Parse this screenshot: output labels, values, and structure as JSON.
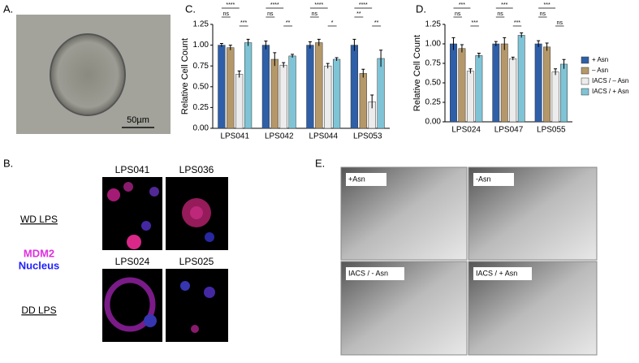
{
  "panels": {
    "a": "A.",
    "b": "B.",
    "c": "C.",
    "d": "D.",
    "e": "E."
  },
  "panel_a": {
    "scale": "50µm"
  },
  "panel_b": {
    "titles": [
      "LPS041",
      "LPS036",
      "LPS024",
      "LPS025"
    ],
    "row_labels": [
      "WD LPS",
      "DD LPS"
    ],
    "stain_labels": [
      "MDM2",
      "Nucleus"
    ]
  },
  "panel_e": {
    "labels": [
      "+Asn",
      "-Asn",
      "IACS / - Asn",
      "IACS / + Asn"
    ]
  },
  "chart_data": [
    {
      "type": "bar",
      "ylabel": "Relative Cell Count",
      "categories": [
        "LPS041",
        "LPS042",
        "LPS044",
        "LPS053"
      ],
      "ylim": [
        0,
        1.25
      ],
      "yticks": [
        {
          "value": 0,
          "label": "0.00"
        },
        {
          "value": 0.25,
          "label": "0.25"
        },
        {
          "value": 0.5,
          "label": "0.50"
        },
        {
          "value": 0.75,
          "label": "0.75"
        },
        {
          "value": 1,
          "label": "1.00"
        },
        {
          "value": 1.25,
          "label": "1.25"
        }
      ],
      "series": [
        {
          "color": "#2e5fa8",
          "values": [
            1.0,
            1.0,
            1.0,
            1.0
          ],
          "errors": [
            0.02,
            0.05,
            0.04,
            0.07
          ]
        },
        {
          "color": "#b5986a",
          "values": [
            0.97,
            0.83,
            1.03,
            0.66
          ],
          "errors": [
            0.03,
            0.08,
            0.04,
            0.05
          ]
        },
        {
          "color": "#ececec",
          "values": [
            0.65,
            0.76,
            0.75,
            0.32
          ],
          "errors": [
            0.04,
            0.03,
            0.03,
            0.08
          ]
        },
        {
          "color": "#7fc4d6",
          "values": [
            1.03,
            0.87,
            0.83,
            0.84
          ],
          "errors": [
            0.04,
            0.02,
            0.02,
            0.1
          ]
        }
      ],
      "annotations": [
        [
          "****",
          "ns",
          "***"
        ],
        [
          "****",
          "ns",
          "**"
        ],
        [
          "****",
          "ns",
          "*"
        ],
        [
          "****",
          "**",
          "**"
        ]
      ]
    },
    {
      "type": "bar",
      "ylabel": "Relative Cell Count",
      "categories": [
        "LPS024",
        "LPS047",
        "LPS055"
      ],
      "ylim": [
        0,
        1.25
      ],
      "yticks": [
        {
          "value": 0,
          "label": "0.00"
        },
        {
          "value": 0.25,
          "label": "0.25"
        },
        {
          "value": 0.5,
          "label": "0.50"
        },
        {
          "value": 0.75,
          "label": "0.75"
        },
        {
          "value": 1,
          "label": "1.00"
        },
        {
          "value": 1.25,
          "label": "1.25"
        }
      ],
      "series": [
        {
          "name": "+ Asn",
          "color": "#2e5fa8",
          "values": [
            1.0,
            1.0,
            1.0
          ],
          "errors": [
            0.08,
            0.03,
            0.04
          ]
        },
        {
          "name": "– Asn",
          "color": "#b5986a",
          "values": [
            0.94,
            1.0,
            0.96
          ],
          "errors": [
            0.05,
            0.08,
            0.05
          ]
        },
        {
          "name": "IACS  / – Asn",
          "color": "#ececec",
          "values": [
            0.65,
            0.81,
            0.64
          ],
          "errors": [
            0.03,
            0.02,
            0.04
          ]
        },
        {
          "name": "IACS / + Asn",
          "color": "#7fc4d6",
          "values": [
            0.85,
            1.11,
            0.74
          ],
          "errors": [
            0.03,
            0.03,
            0.06
          ]
        }
      ],
      "legend": "right",
      "annotations": [
        [
          "***",
          "ns",
          "***"
        ],
        [
          "***",
          "ns",
          "***"
        ],
        [
          "***",
          "ns",
          "ns"
        ]
      ]
    }
  ]
}
